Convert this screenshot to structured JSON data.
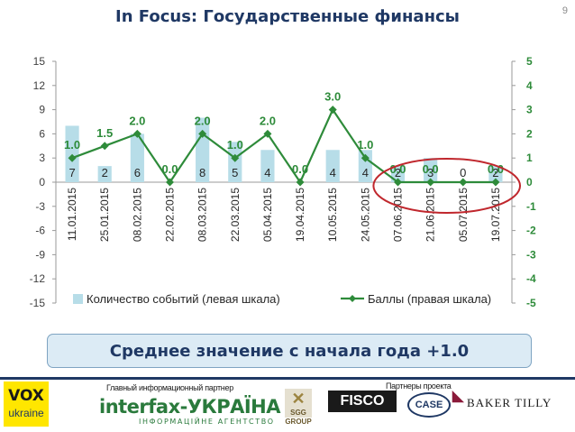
{
  "page": {
    "title": "In Focus: Государственные финансы",
    "page_number": "9"
  },
  "chart_data": {
    "type": "bar",
    "categories": [
      "11.01.2015",
      "25.01.2015",
      "08.02.2015",
      "22.02.2015",
      "08.03.2015",
      "22.03.2015",
      "05.04.2015",
      "19.04.2015",
      "10.05.2015",
      "24.05.2015",
      "07.06.2015",
      "21.06.2015",
      "05.07.2015",
      "19.07.2015"
    ],
    "series": [
      {
        "name": "Количество событий (левая шкала)",
        "type": "bar",
        "axis": "left",
        "color": "#b7dde8",
        "values": [
          7,
          2,
          6,
          0,
          8,
          5,
          4,
          0,
          4,
          4,
          2,
          3,
          0,
          2
        ],
        "labels": [
          "7",
          "2",
          "6",
          "",
          "8",
          "5",
          "4",
          "",
          "4",
          "4",
          "2",
          "3",
          "0",
          "2"
        ]
      },
      {
        "name": "Баллы (правая шкала)",
        "type": "line",
        "axis": "right",
        "color": "#2e8b3a",
        "values": [
          1.0,
          1.5,
          2.0,
          0.0,
          2.0,
          1.0,
          2.0,
          0.0,
          3.0,
          1.0,
          0.0,
          0.0,
          0.0,
          0.0
        ],
        "labels": [
          "1.0",
          "1.5",
          "2.0",
          "0.0",
          "2.0",
          "1.0",
          "2.0",
          "0.0",
          "3.0",
          "1.0",
          "0.0",
          "0.0",
          "",
          "0.0"
        ]
      }
    ],
    "y_left": {
      "min": -15,
      "max": 15,
      "ticks": [
        "15",
        "12",
        "9",
        "6",
        "3",
        "0",
        "-3",
        "-6",
        "-9",
        "-12",
        "-15"
      ]
    },
    "y_right": {
      "min": -5,
      "max": 5,
      "ticks": [
        "5",
        "4",
        "3",
        "2",
        "1",
        "0",
        "-1",
        "-2",
        "-3",
        "-4",
        "-5"
      ]
    },
    "grid": false,
    "legend_position": "bottom",
    "highlight": {
      "shape": "ellipse",
      "color": "#c0272d",
      "covers_categories": [
        "07.06.2015",
        "21.06.2015",
        "05.07.2015",
        "19.07.2015"
      ]
    }
  },
  "summary": {
    "text": "Среднее значение с начала года +1.0"
  },
  "footer": {
    "vox_line1": "VOX",
    "vox_line2": "ukraine",
    "main_partner_label": "Главный информационный партнер",
    "project_partners_label": "Партнеры проекта",
    "interfax_name": "interfax-УКРАЇНА",
    "interfax_sub": "ІНФОРМАЦІЙНЕ АГЕНТСТВО",
    "logos": [
      "SGG GROUP",
      "FISCO",
      "CASE",
      "BAKER TILLY"
    ]
  }
}
